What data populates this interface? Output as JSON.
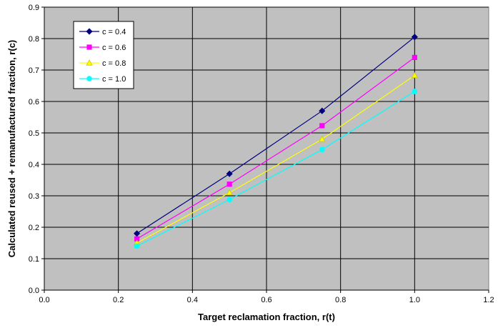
{
  "chart_data": {
    "type": "line",
    "title": "",
    "xlabel": "Target reclamation fraction, r(t)",
    "ylabel": "Calculated reused + remanufactured fraction, r(c)",
    "xlim": [
      0.0,
      1.2
    ],
    "ylim": [
      0.0,
      0.9
    ],
    "xticks": [
      "0.0",
      "0.2",
      "0.4",
      "0.6",
      "0.8",
      "1.0",
      "1.2"
    ],
    "yticks": [
      "0.0",
      "0.1",
      "0.2",
      "0.3",
      "0.4",
      "0.5",
      "0.6",
      "0.7",
      "0.8",
      "0.9"
    ],
    "grid": true,
    "plot_background": "#c0c0c0",
    "legend_position": "top-left",
    "x": [
      0.25,
      0.5,
      0.75,
      1.0
    ],
    "series": [
      {
        "name": "c = 0.4",
        "values": [
          0.18,
          0.37,
          0.57,
          0.805
        ],
        "color": "#000080",
        "marker": "diamond"
      },
      {
        "name": "c = 0.6",
        "values": [
          0.163,
          0.337,
          0.523,
          0.74
        ],
        "color": "#ff00ff",
        "marker": "square"
      },
      {
        "name": "c = 0.8",
        "values": [
          0.15,
          0.31,
          0.48,
          0.683
        ],
        "color": "#ffff00",
        "marker": "triangle"
      },
      {
        "name": "c = 1.0",
        "values": [
          0.14,
          0.288,
          0.447,
          0.632
        ],
        "color": "#00ffff",
        "marker": "circle"
      }
    ]
  }
}
